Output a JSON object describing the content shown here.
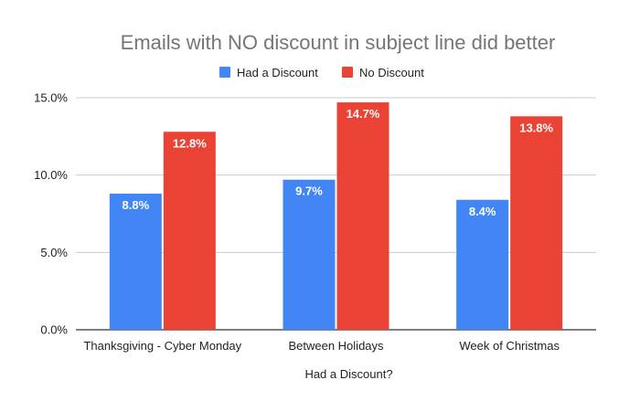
{
  "chart_data": {
    "type": "bar",
    "title": "Emails with NO discount in subject line did better",
    "xlabel": "Had a Discount?",
    "ylabel": "",
    "categories": [
      "Thanksgiving - Cyber Monday",
      "Between Holidays",
      "Week of Christmas"
    ],
    "series": [
      {
        "name": "Had a Discount",
        "color": "#4285f4",
        "values": [
          8.8,
          9.7,
          8.4
        ],
        "labels": [
          "8.8%",
          "9.7%",
          "8.4%"
        ]
      },
      {
        "name": "No Discount",
        "color": "#ea4335",
        "values": [
          12.8,
          14.7,
          13.8
        ],
        "labels": [
          "12.8%",
          "14.7%",
          "13.8%"
        ]
      }
    ],
    "ylim": [
      0,
      15
    ],
    "yticks": [
      0,
      5,
      10,
      15
    ],
    "ytick_labels": [
      "0.0%",
      "5.0%",
      "10.0%",
      "15.0%"
    ],
    "legend_position": "top-center",
    "grid": true,
    "colors": {
      "title": "#757575",
      "text": "#222222",
      "grid": "#cccccc",
      "axis": "#333333",
      "data_label": "#ffffff"
    }
  }
}
